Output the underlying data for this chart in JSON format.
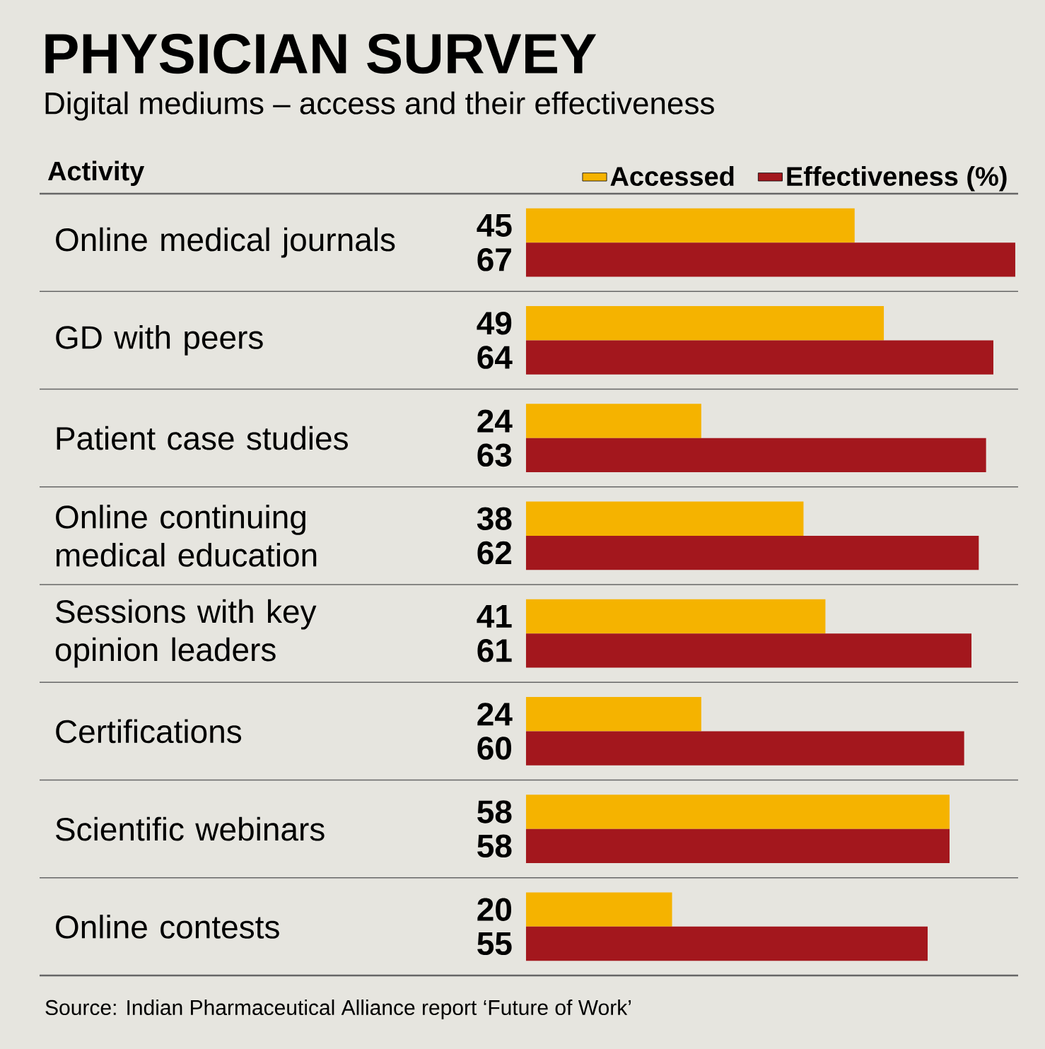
{
  "chart_data": {
    "type": "bar",
    "orientation": "horizontal",
    "title": "PHYSICIAN SURVEY",
    "subtitle": "Digital mediums – access and their effectiveness",
    "ylabel": "Activity",
    "categories": [
      "Online medical journals",
      "GD with peers",
      "Patient case studies",
      "Online continuing medical education",
      "Sessions with key opinion leaders",
      "Certifications",
      "Scientific webinars",
      "Online contests"
    ],
    "series": [
      {
        "name": "Accessed",
        "color": "#f5b300",
        "values": [
          45,
          49,
          24,
          38,
          41,
          24,
          58,
          20
        ]
      },
      {
        "name": "Effectiveness (%)",
        "color": "#a3171d",
        "values": [
          67,
          64,
          63,
          62,
          61,
          60,
          58,
          55
        ]
      }
    ],
    "data_labels": true,
    "legend": "top right",
    "annotations": [
      "Source: Indian Pharmaceutical Alliance report ‘Future of Work’"
    ]
  }
}
